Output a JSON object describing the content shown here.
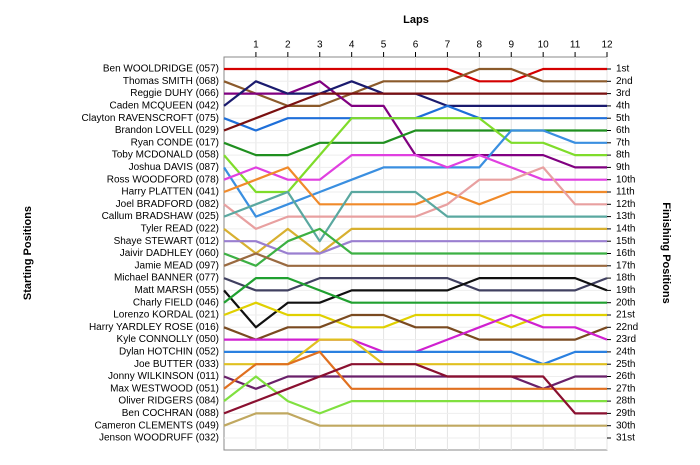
{
  "chart_data": {
    "type": "lap",
    "title": "Laps",
    "ylabel": "Starting Positions",
    "y2label": "Finishing Positions",
    "xlim": [
      0,
      12
    ],
    "xticks": [
      1,
      2,
      3,
      4,
      5,
      6,
      7,
      8,
      9,
      10,
      11,
      12
    ],
    "ylim": [
      1,
      31
    ],
    "yticks": [
      {
        "value": 1,
        "label": "1st"
      },
      {
        "value": 2,
        "label": "2nd"
      },
      {
        "value": 3,
        "label": "3rd"
      },
      {
        "value": 4,
        "label": "4th"
      },
      {
        "value": 5,
        "label": "5th"
      },
      {
        "value": 6,
        "label": "6th"
      },
      {
        "value": 7,
        "label": "7th"
      },
      {
        "value": 8,
        "label": "8th"
      },
      {
        "value": 9,
        "label": "9th"
      },
      {
        "value": 10,
        "label": "10th"
      },
      {
        "value": 11,
        "label": "11th"
      },
      {
        "value": 12,
        "label": "12th"
      },
      {
        "value": 13,
        "label": "13th"
      },
      {
        "value": 14,
        "label": "14th"
      },
      {
        "value": 15,
        "label": "15th"
      },
      {
        "value": 16,
        "label": "16th"
      },
      {
        "value": 17,
        "label": "17th"
      },
      {
        "value": 18,
        "label": "18th"
      },
      {
        "value": 19,
        "label": "19th"
      },
      {
        "value": 20,
        "label": "20th"
      },
      {
        "value": 21,
        "label": "21st"
      },
      {
        "value": 22,
        "label": "22nd"
      },
      {
        "value": 23,
        "label": "23rd"
      },
      {
        "value": 24,
        "label": "24th"
      },
      {
        "value": 25,
        "label": "25th"
      },
      {
        "value": 26,
        "label": "26th"
      },
      {
        "value": 27,
        "label": "27th"
      },
      {
        "value": 28,
        "label": "28th"
      },
      {
        "value": 29,
        "label": "29th"
      },
      {
        "value": 30,
        "label": "30th"
      },
      {
        "value": 31,
        "label": "31st"
      }
    ],
    "grid": true,
    "series": [
      {
        "name": "Ben WOOLDRIDGE (057)",
        "color": "#d40000",
        "values": [
          1,
          1,
          1,
          1,
          1,
          1,
          1,
          1,
          2,
          2,
          1,
          1,
          1
        ]
      },
      {
        "name": "Thomas SMITH (068)",
        "color": "#8b5a2b",
        "values": [
          2,
          3,
          4,
          4,
          3,
          2,
          2,
          2,
          1,
          1,
          2,
          2,
          2
        ]
      },
      {
        "name": "Reggie DUHY (066)",
        "color": "#800080",
        "values": [
          3,
          3,
          3,
          2,
          4,
          4,
          8,
          8,
          8,
          8,
          8,
          9,
          9
        ]
      },
      {
        "name": "Caden MCQUEEN (042)",
        "color": "#1a1a6e",
        "values": [
          4,
          2,
          3,
          3,
          2,
          3,
          3,
          4,
          4,
          4,
          4,
          4,
          4
        ]
      },
      {
        "name": "Clayton RAVENSCROFT (075)",
        "color": "#1e6fd9",
        "values": [
          5,
          6,
          5,
          5,
          5,
          5,
          5,
          4,
          5,
          5,
          5,
          5,
          5
        ]
      },
      {
        "name": "Brandon LOVELL (029)",
        "color": "#7a1010",
        "values": [
          6,
          5,
          4,
          3,
          3,
          3,
          3,
          3,
          3,
          3,
          3,
          3,
          3
        ]
      },
      {
        "name": "Ryan CONDE (017)",
        "color": "#1f8f1f",
        "values": [
          7,
          8,
          8,
          7,
          7,
          7,
          6,
          6,
          6,
          6,
          6,
          6,
          6
        ]
      },
      {
        "name": "Toby MCDONALD (058)",
        "color": "#7fdc2a",
        "values": [
          8,
          11,
          11,
          8,
          5,
          5,
          5,
          5,
          5,
          7,
          7,
          8,
          8
        ]
      },
      {
        "name": "Joshua DAVIS (087)",
        "color": "#3a8fe0",
        "values": [
          9,
          13,
          12,
          11,
          10,
          9,
          9,
          9,
          9,
          6,
          6,
          7,
          7
        ]
      },
      {
        "name": "Ross WOODFORD (078)",
        "color": "#e040e0",
        "values": [
          10,
          9,
          10,
          10,
          8,
          8,
          8,
          9,
          8,
          9,
          10,
          10,
          10
        ]
      },
      {
        "name": "Harry PLATTEN (041)",
        "color": "#f08a2a",
        "values": [
          11,
          10,
          9,
          12,
          12,
          12,
          12,
          11,
          12,
          11,
          11,
          11,
          11
        ]
      },
      {
        "name": "Joel BRADFORD (082)",
        "color": "#e8a0a0",
        "values": [
          12,
          14,
          13,
          13,
          13,
          13,
          13,
          12,
          10,
          10,
          9,
          12,
          12
        ]
      },
      {
        "name": "Callum BRADSHAW (025)",
        "color": "#5aa8a0",
        "values": [
          13,
          12,
          11,
          15,
          11,
          11,
          11,
          13,
          13,
          13,
          13,
          13,
          13
        ]
      },
      {
        "name": "Tyler READ (022)",
        "color": "#d8b030",
        "values": [
          14,
          16,
          14,
          16,
          14,
          14,
          14,
          14,
          14,
          14,
          14,
          14,
          14
        ]
      },
      {
        "name": "Shaye STEWART (012)",
        "color": "#9a7fd0",
        "values": [
          15,
          15,
          16,
          16,
          15,
          15,
          15,
          15,
          15,
          15,
          15,
          15,
          15
        ]
      },
      {
        "name": "Jaivir DADHLEY (060)",
        "color": "#3cb043",
        "values": [
          16,
          17,
          15,
          14,
          16,
          16,
          16,
          16,
          16,
          16,
          16,
          16,
          16
        ]
      },
      {
        "name": "Jamie MEAD (097)",
        "color": "#9a6a40",
        "values": [
          17,
          16,
          17,
          17,
          17,
          17,
          17,
          17,
          17,
          17,
          17,
          17,
          17
        ]
      },
      {
        "name": "Michael BANNER (077)",
        "color": "#404060",
        "values": [
          18,
          19,
          19,
          18,
          18,
          18,
          18,
          18,
          19,
          19,
          19,
          19,
          18
        ]
      },
      {
        "name": "Matt MARSH (055)",
        "color": "#101010",
        "values": [
          19,
          22,
          20,
          20,
          19,
          19,
          19,
          19,
          18,
          18,
          18,
          18,
          19
        ]
      },
      {
        "name": "Charly FIELD (046)",
        "color": "#20a030",
        "values": [
          20,
          18,
          18,
          19,
          20,
          20,
          20,
          20,
          20,
          20,
          20,
          20,
          20
        ]
      },
      {
        "name": "Lorenzo KORDAL (021)",
        "color": "#e0d000",
        "values": [
          21,
          20,
          21,
          21,
          22,
          22,
          21,
          21,
          21,
          22,
          21,
          21,
          21
        ]
      },
      {
        "name": "Harry YARDLEY ROSE (016)",
        "color": "#7a4a20",
        "values": [
          22,
          23,
          22,
          22,
          21,
          21,
          22,
          22,
          23,
          23,
          23,
          23,
          22
        ]
      },
      {
        "name": "Kyle CONNOLLY (050)",
        "color": "#d020d0",
        "values": [
          23,
          23,
          23,
          23,
          23,
          24,
          24,
          23,
          22,
          21,
          22,
          22,
          23
        ]
      },
      {
        "name": "Dylan HOTCHIN (052)",
        "color": "#2a80e0",
        "values": [
          24,
          24,
          24,
          24,
          24,
          24,
          24,
          24,
          24,
          24,
          25,
          24,
          24
        ]
      },
      {
        "name": "Joe BUTTER (033)",
        "color": "#e0c020",
        "values": [
          25,
          25,
          25,
          23,
          23,
          25,
          25,
          25,
          25,
          25,
          25,
          25,
          25
        ]
      },
      {
        "name": "Jonny WILKINSON (011)",
        "color": "#6a206a",
        "values": [
          26,
          27,
          26,
          26,
          26,
          26,
          26,
          26,
          26,
          26,
          27,
          26,
          26
        ]
      },
      {
        "name": "Max WESTWOOD (051)",
        "color": "#e07020",
        "values": [
          27,
          25,
          25,
          24,
          27,
          27,
          27,
          27,
          27,
          27,
          27,
          27,
          27
        ]
      },
      {
        "name": "Oliver RIDGERS (084)",
        "color": "#80e040",
        "values": [
          28,
          26,
          28,
          29,
          28,
          28,
          28,
          28,
          28,
          28,
          28,
          28,
          28
        ]
      },
      {
        "name": "Ben COCHRAN (088)",
        "color": "#8a1030",
        "values": [
          29,
          28,
          27,
          26,
          25,
          25,
          25,
          26,
          26,
          26,
          26,
          29,
          29
        ]
      },
      {
        "name": "Cameron CLEMENTS (049)",
        "color": "#c0a860",
        "values": [
          30,
          29,
          29,
          30,
          30,
          30,
          30,
          30,
          30,
          30,
          30,
          30,
          30
        ]
      },
      {
        "name": "Jenson WOODRUFF (032)",
        "color": "#555555",
        "values": [
          31,
          null,
          null,
          null,
          null,
          null,
          null,
          null,
          null,
          null,
          null,
          null,
          null
        ]
      }
    ]
  }
}
